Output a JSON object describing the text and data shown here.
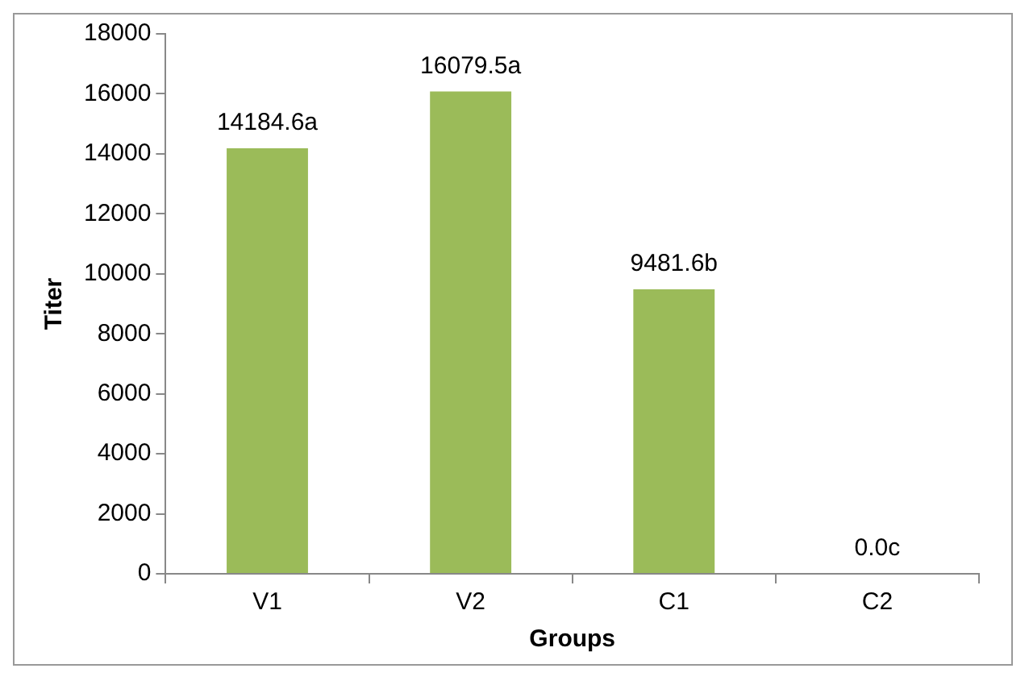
{
  "chart_data": {
    "type": "bar",
    "xlabel": "Groups",
    "ylabel": "Titer",
    "categories": [
      "V1",
      "V2",
      "C1",
      "C2"
    ],
    "values": [
      14184.6,
      16079.5,
      9481.6,
      0.0
    ],
    "value_labels": [
      "14184.6a",
      "16079.5a",
      "9481.6b",
      "0.0c"
    ],
    "color": "#9bbb59",
    "ylim": [
      0,
      18000
    ],
    "yticks": [
      0,
      2000,
      4000,
      6000,
      8000,
      10000,
      12000,
      14000,
      16000,
      18000
    ],
    "grid": false,
    "legend": false
  }
}
